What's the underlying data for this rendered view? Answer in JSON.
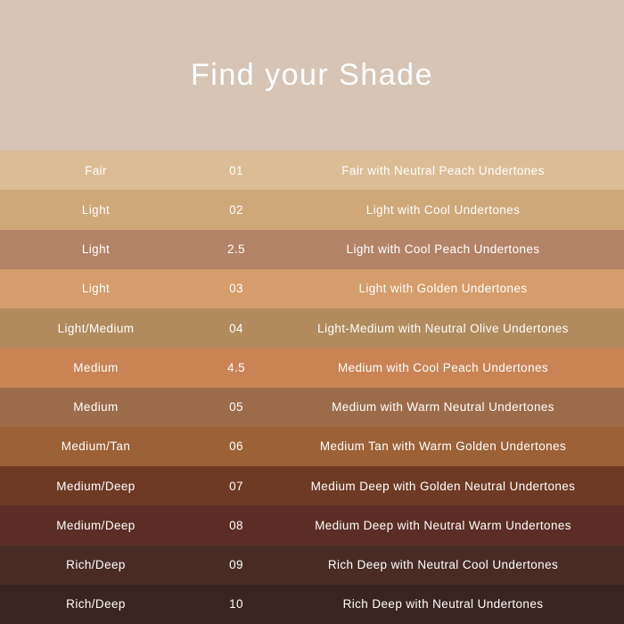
{
  "header": {
    "title": "Find your Shade",
    "background_color": "#d6c5b6",
    "text_color": "#ffffff"
  },
  "chart_data": {
    "type": "table",
    "title": "Find your Shade",
    "columns": [
      "shade_category",
      "shade_number",
      "shade_description"
    ],
    "rows": [
      {
        "label": "Fair",
        "number": "01",
        "description": "Fair with Neutral Peach Undertones",
        "swatch_color": "#dcbc94"
      },
      {
        "label": "Light",
        "number": "02",
        "description": "Light with Cool Undertones",
        "swatch_color": "#cfa87a"
      },
      {
        "label": "Light",
        "number": "2.5",
        "description": "Light with Cool Peach Undertones",
        "swatch_color": "#b38367"
      },
      {
        "label": "Light",
        "number": "03",
        "description": "Light with Golden Undertones",
        "swatch_color": "#d59d6b"
      },
      {
        "label": "Light/Medium",
        "number": "04",
        "description": "Light-Medium with Neutral Olive Undertones",
        "swatch_color": "#b18a5d"
      },
      {
        "label": "Medium",
        "number": "4.5",
        "description": "Medium with Cool Peach Undertones",
        "swatch_color": "#ca8355"
      },
      {
        "label": "Medium",
        "number": "05",
        "description": "Medium with Warm Neutral Undertones",
        "swatch_color": "#9c6b4a"
      },
      {
        "label": "Medium/Tan",
        "number": "06",
        "description": "Medium Tan with Warm Golden Undertones",
        "swatch_color": "#9c6137"
      },
      {
        "label": "Medium/Deep",
        "number": "07",
        "description": "Medium Deep with Golden Neutral Undertones",
        "swatch_color": "#6e3a24"
      },
      {
        "label": "Medium/Deep",
        "number": "08",
        "description": "Medium Deep with Neutral Warm Undertones",
        "swatch_color": "#5b2d24"
      },
      {
        "label": "Rich/Deep",
        "number": "09",
        "description": "Rich Deep with Neutral Cool Undertones",
        "swatch_color": "#492b25"
      },
      {
        "label": "Rich/Deep",
        "number": "10",
        "description": "Rich Deep with Neutral Undertones",
        "swatch_color": "#392520"
      }
    ]
  }
}
